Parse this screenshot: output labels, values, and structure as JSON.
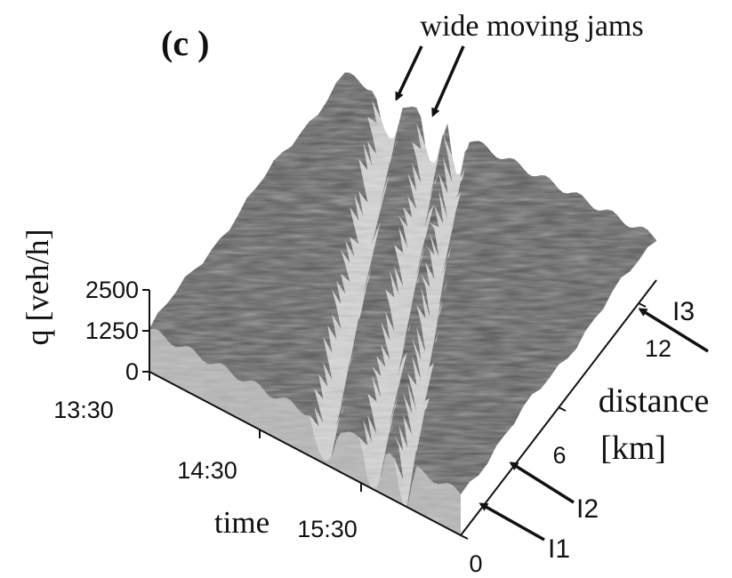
{
  "chart_data": {
    "type": "surface3d",
    "panel_label": "(c )",
    "annotation": "wide moving jams",
    "z_axis": {
      "label": "q [veh/h]",
      "ticks": [
        "2500",
        "1250",
        "0"
      ],
      "range": [
        0,
        2500
      ]
    },
    "time_axis": {
      "label": "time",
      "ticks": [
        "13:30",
        "14:30",
        "15:30"
      ]
    },
    "distance_axis": {
      "label_line1": "distance",
      "label_line2": "[km]",
      "ticks": [
        "0",
        "6",
        "12"
      ]
    },
    "detectors": [
      "I1",
      "I2",
      "I3"
    ],
    "surface": {
      "free_flow_level": 1300,
      "jam_level": 0,
      "colors": {
        "free_flow": "#5a5a5a",
        "jam": "#d6d6d6"
      }
    }
  }
}
